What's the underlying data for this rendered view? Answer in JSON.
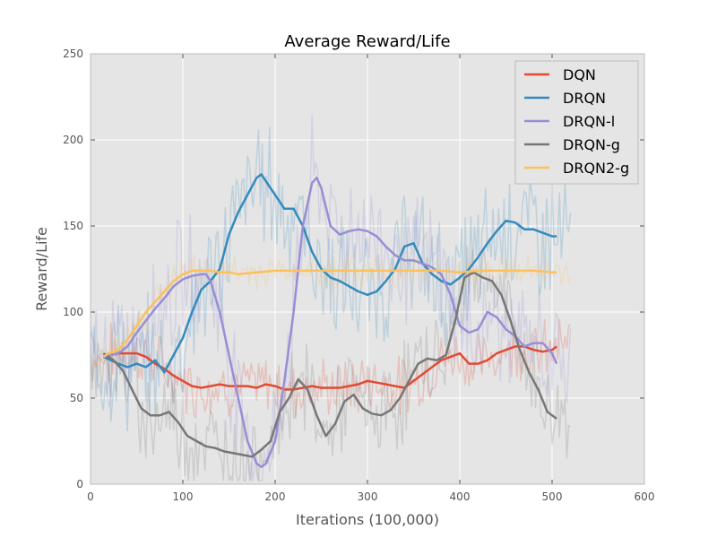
{
  "chart_data": {
    "type": "line",
    "title": "Average Reward/Life",
    "xlabel": "Iterations (100,000)",
    "ylabel": "Reward/Life",
    "xlim": [
      0,
      600
    ],
    "ylim": [
      0,
      250
    ],
    "xticks": [
      "0",
      "100",
      "200",
      "300",
      "400",
      "500",
      "600"
    ],
    "yticks": [
      "0",
      "50",
      "100",
      "150",
      "200",
      "250"
    ],
    "grid": true,
    "legend_position": "top-right",
    "series": [
      {
        "name": "DQN",
        "color": "#E24A33",
        "x": [
          14,
          30,
          50,
          60,
          70,
          80,
          90,
          100,
          110,
          120,
          130,
          140,
          150,
          160,
          170,
          180,
          190,
          200,
          210,
          220,
          230,
          240,
          250,
          260,
          270,
          280,
          290,
          300,
          310,
          320,
          330,
          340,
          350,
          360,
          370,
          380,
          390,
          400,
          410,
          420,
          430,
          440,
          450,
          460,
          470,
          480,
          490,
          500,
          505
        ],
        "y": [
          74,
          76,
          76,
          74,
          70,
          67,
          63,
          60,
          57,
          56,
          57,
          58,
          57,
          57,
          57,
          56,
          58,
          57,
          55,
          55,
          56,
          57,
          56,
          56,
          56,
          57,
          58,
          60,
          59,
          58,
          57,
          56,
          60,
          64,
          68,
          72,
          74,
          76,
          70,
          70,
          72,
          76,
          78,
          80,
          80,
          78,
          77,
          78,
          80
        ]
      },
      {
        "name": "DRQN",
        "color": "#348ABD",
        "x": [
          14,
          30,
          40,
          50,
          60,
          70,
          80,
          90,
          100,
          110,
          120,
          130,
          140,
          150,
          160,
          170,
          180,
          185,
          190,
          200,
          210,
          220,
          230,
          240,
          250,
          260,
          270,
          280,
          290,
          300,
          310,
          320,
          330,
          340,
          350,
          360,
          370,
          380,
          390,
          400,
          410,
          420,
          430,
          440,
          450,
          460,
          470,
          480,
          490,
          500,
          505
        ],
        "y": [
          74,
          70,
          68,
          70,
          68,
          72,
          65,
          75,
          85,
          100,
          113,
          118,
          125,
          145,
          158,
          168,
          178,
          180,
          176,
          168,
          160,
          160,
          150,
          135,
          125,
          120,
          118,
          115,
          112,
          110,
          112,
          118,
          125,
          138,
          140,
          128,
          122,
          118,
          116,
          120,
          125,
          132,
          140,
          147,
          153,
          152,
          148,
          148,
          146,
          144,
          144
        ]
      },
      {
        "name": "DRQN-l",
        "color": "#988ED5",
        "x": [
          14,
          30,
          40,
          50,
          60,
          70,
          80,
          90,
          100,
          110,
          120,
          125,
          130,
          140,
          150,
          160,
          170,
          180,
          185,
          190,
          200,
          210,
          220,
          230,
          240,
          245,
          250,
          260,
          270,
          280,
          290,
          300,
          310,
          320,
          330,
          340,
          350,
          360,
          370,
          380,
          390,
          400,
          410,
          420,
          430,
          440,
          450,
          460,
          470,
          480,
          490,
          500,
          505
        ],
        "y": [
          74,
          76,
          80,
          88,
          95,
          102,
          108,
          115,
          119,
          121,
          122,
          122,
          118,
          100,
          75,
          50,
          25,
          12,
          10,
          12,
          25,
          60,
          100,
          150,
          175,
          178,
          172,
          150,
          145,
          147,
          148,
          147,
          144,
          138,
          133,
          130,
          130,
          128,
          126,
          122,
          110,
          92,
          88,
          90,
          100,
          97,
          90,
          86,
          80,
          82,
          82,
          76,
          70
        ]
      },
      {
        "name": "DRQN-g",
        "color": "#777777",
        "x": [
          14,
          25,
          35,
          45,
          55,
          65,
          75,
          85,
          95,
          105,
          115,
          125,
          135,
          145,
          155,
          165,
          175,
          185,
          195,
          205,
          215,
          225,
          235,
          245,
          255,
          265,
          275,
          285,
          295,
          305,
          315,
          325,
          335,
          345,
          355,
          365,
          375,
          385,
          395,
          405,
          415,
          425,
          435,
          445,
          455,
          465,
          475,
          485,
          495,
          505
        ],
        "y": [
          76,
          72,
          66,
          55,
          44,
          40,
          40,
          42,
          36,
          28,
          25,
          22,
          21,
          19,
          18,
          17,
          16,
          20,
          25,
          42,
          50,
          61,
          55,
          40,
          28,
          35,
          48,
          52,
          44,
          41,
          40,
          43,
          50,
          60,
          70,
          73,
          72,
          75,
          95,
          120,
          123,
          120,
          118,
          110,
          95,
          78,
          65,
          55,
          42,
          38
        ]
      },
      {
        "name": "DRQN2-g",
        "color": "#FBC15E",
        "x": [
          14,
          20,
          30,
          40,
          50,
          60,
          70,
          80,
          90,
          100,
          110,
          120,
          130,
          140,
          150,
          160,
          180,
          200,
          220,
          240,
          260,
          280,
          300,
          320,
          340,
          360,
          380,
          400,
          420,
          440,
          460,
          480,
          500,
          505
        ],
        "y": [
          74,
          76,
          78,
          84,
          92,
          100,
          106,
          112,
          118,
          122,
          124,
          124,
          124,
          123,
          123,
          122,
          123,
          124,
          124,
          124,
          124,
          124,
          124,
          124,
          124,
          124,
          124,
          123,
          124,
          124,
          124,
          124,
          123,
          123
        ]
      }
    ]
  }
}
